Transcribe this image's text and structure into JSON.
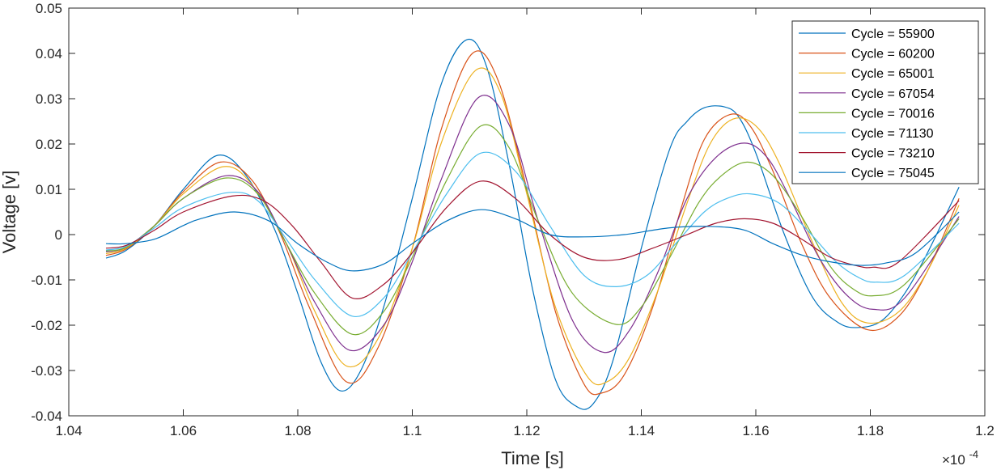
{
  "chart_data": {
    "type": "line",
    "title": "",
    "xlabel": "Time [s]",
    "ylabel": "Voltage [v]",
    "x_multiplier_label": "×10",
    "x_multiplier_exponent": "-4",
    "xlim": [
      1.04,
      1.2
    ],
    "ylim": [
      -0.04,
      0.05
    ],
    "x_ticks": [
      1.04,
      1.06,
      1.08,
      1.1,
      1.12,
      1.14,
      1.16,
      1.18,
      1.2
    ],
    "x_tick_labels": [
      "1.04",
      "1.06",
      "1.08",
      "1.1",
      "1.12",
      "1.14",
      "1.16",
      "1.18",
      "1.2"
    ],
    "y_ticks": [
      -0.04,
      -0.03,
      -0.02,
      -0.01,
      0,
      0.01,
      0.02,
      0.03,
      0.04,
      0.05
    ],
    "y_tick_labels": [
      "-0.04",
      "-0.03",
      "-0.02",
      "-0.01",
      "0",
      "0.01",
      "0.02",
      "0.03",
      "0.04",
      "0.05"
    ],
    "grid": false,
    "legend_position": "top-right",
    "series": [
      {
        "name": "Cycle = 55900",
        "color": "#0072BD",
        "x": [
          1.0465,
          1.05,
          1.055,
          1.06,
          1.066,
          1.071,
          1.076,
          1.08,
          1.084,
          1.0875,
          1.091,
          1.095,
          1.1,
          1.105,
          1.1095,
          1.113,
          1.117,
          1.121,
          1.125,
          1.1285,
          1.1315,
          1.135,
          1.14,
          1.145,
          1.148,
          1.151,
          1.1545,
          1.157,
          1.16,
          1.165,
          1.17,
          1.1745,
          1.178,
          1.182,
          1.186,
          1.19,
          1.1955
        ],
        "y": [
          -0.0052,
          -0.0035,
          0.002,
          0.01,
          0.0175,
          0.013,
          0.001,
          -0.013,
          -0.028,
          -0.0345,
          -0.03,
          -0.016,
          0.008,
          0.033,
          0.043,
          0.037,
          0.015,
          -0.012,
          -0.032,
          -0.0378,
          -0.0375,
          -0.028,
          -0.003,
          0.019,
          0.025,
          0.028,
          0.0282,
          0.026,
          0.018,
          0.0,
          -0.014,
          -0.0195,
          -0.0205,
          -0.019,
          -0.013,
          -0.004,
          0.0105
        ]
      },
      {
        "name": "Cycle = 60200",
        "color": "#D95319",
        "x": [
          1.0465,
          1.05,
          1.055,
          1.06,
          1.0665,
          1.072,
          1.077,
          1.082,
          1.0885,
          1.094,
          1.1,
          1.105,
          1.1105,
          1.115,
          1.12,
          1.125,
          1.13,
          1.133,
          1.137,
          1.142,
          1.147,
          1.151,
          1.1555,
          1.159,
          1.163,
          1.168,
          1.173,
          1.1795,
          1.185,
          1.19,
          1.1955
        ],
        "y": [
          -0.0046,
          -0.0032,
          0.002,
          0.0095,
          0.016,
          0.012,
          0.0,
          -0.016,
          -0.0325,
          -0.025,
          -0.003,
          0.023,
          0.04,
          0.034,
          0.01,
          -0.017,
          -0.033,
          -0.035,
          -0.031,
          -0.016,
          0.006,
          0.021,
          0.0265,
          0.024,
          0.014,
          -0.002,
          -0.014,
          -0.021,
          -0.018,
          -0.008,
          0.008
        ]
      },
      {
        "name": "Cycle = 65001",
        "color": "#EDB120",
        "x": [
          1.0465,
          1.05,
          1.055,
          1.06,
          1.067,
          1.072,
          1.078,
          1.083,
          1.0885,
          1.094,
          1.1,
          1.105,
          1.111,
          1.1155,
          1.12,
          1.125,
          1.1305,
          1.134,
          1.138,
          1.143,
          1.148,
          1.152,
          1.156,
          1.16,
          1.164,
          1.17,
          1.175,
          1.1795,
          1.185,
          1.19,
          1.1955
        ],
        "y": [
          -0.0042,
          -0.003,
          0.002,
          0.009,
          0.015,
          0.011,
          -0.002,
          -0.017,
          -0.029,
          -0.023,
          -0.003,
          0.02,
          0.0362,
          0.031,
          0.009,
          -0.016,
          -0.0312,
          -0.0325,
          -0.027,
          -0.012,
          0.007,
          0.02,
          0.0255,
          0.024,
          0.016,
          -0.002,
          -0.015,
          -0.0195,
          -0.017,
          -0.008,
          0.0065
        ]
      },
      {
        "name": "Cycle = 67054",
        "color": "#7E2F8E",
        "x": [
          1.0465,
          1.05,
          1.055,
          1.06,
          1.0675,
          1.073,
          1.078,
          1.083,
          1.089,
          1.095,
          1.1,
          1.105,
          1.1115,
          1.117,
          1.122,
          1.128,
          1.1335,
          1.138,
          1.143,
          1.148,
          1.153,
          1.158,
          1.162,
          1.166,
          1.171,
          1.176,
          1.1805,
          1.186,
          1.1955
        ],
        "y": [
          -0.0038,
          -0.0028,
          0.002,
          0.008,
          0.013,
          0.0095,
          -0.002,
          -0.015,
          -0.0255,
          -0.02,
          -0.006,
          0.012,
          0.0302,
          0.024,
          0.003,
          -0.019,
          -0.026,
          -0.021,
          -0.008,
          0.008,
          0.017,
          0.0202,
          0.017,
          0.008,
          -0.005,
          -0.0135,
          -0.0165,
          -0.014,
          0.004
        ]
      },
      {
        "name": "Cycle = 70016",
        "color": "#77AC30",
        "x": [
          1.0465,
          1.05,
          1.055,
          1.06,
          1.0675,
          1.073,
          1.078,
          1.083,
          1.0895,
          1.095,
          1.1,
          1.106,
          1.112,
          1.117,
          1.122,
          1.128,
          1.1355,
          1.14,
          1.145,
          1.15,
          1.154,
          1.1585,
          1.163,
          1.168,
          1.173,
          1.177,
          1.1805,
          1.186,
          1.1955
        ],
        "y": [
          -0.0036,
          -0.0028,
          0.002,
          0.008,
          0.0125,
          0.009,
          -0.002,
          -0.013,
          -0.022,
          -0.017,
          -0.005,
          0.012,
          0.024,
          0.019,
          0.003,
          -0.013,
          -0.0198,
          -0.016,
          -0.005,
          0.007,
          0.013,
          0.016,
          0.013,
          0.004,
          -0.007,
          -0.012,
          -0.0135,
          -0.011,
          0.0035
        ]
      },
      {
        "name": "Cycle = 71130",
        "color": "#4DBEEE",
        "x": [
          1.0465,
          1.05,
          1.055,
          1.06,
          1.068,
          1.073,
          1.078,
          1.083,
          1.0895,
          1.095,
          1.1,
          1.106,
          1.112,
          1.118,
          1.124,
          1.13,
          1.1355,
          1.141,
          1.146,
          1.151,
          1.155,
          1.159,
          1.164,
          1.169,
          1.174,
          1.178,
          1.181,
          1.186,
          1.1955
        ],
        "y": [
          -0.0034,
          -0.0026,
          0.0015,
          0.006,
          0.0093,
          0.0075,
          -0.001,
          -0.01,
          -0.018,
          -0.014,
          -0.004,
          0.009,
          0.018,
          0.014,
          0.002,
          -0.009,
          -0.0115,
          -0.009,
          -0.002,
          0.005,
          0.008,
          0.009,
          0.007,
          0.001,
          -0.006,
          -0.0095,
          -0.0105,
          -0.009,
          0.0025
        ]
      },
      {
        "name": "Cycle = 73210",
        "color": "#A2142F",
        "x": [
          1.0465,
          1.05,
          1.055,
          1.06,
          1.0685,
          1.074,
          1.079,
          1.084,
          1.0895,
          1.095,
          1.1,
          1.106,
          1.112,
          1.118,
          1.124,
          1.13,
          1.136,
          1.142,
          1.148,
          1.153,
          1.158,
          1.163,
          1.168,
          1.173,
          1.178,
          1.1805,
          1.185,
          1.1955
        ],
        "y": [
          -0.003,
          -0.0024,
          0.001,
          0.005,
          0.0085,
          0.0075,
          0.002,
          -0.006,
          -0.014,
          -0.011,
          -0.004,
          0.006,
          0.0118,
          0.008,
          0.0,
          -0.005,
          -0.0055,
          -0.003,
          0.0,
          0.0025,
          0.0035,
          0.0025,
          -0.001,
          -0.005,
          -0.007,
          -0.0072,
          -0.006,
          0.0075
        ]
      },
      {
        "name": "Cycle = 75045",
        "color": "#0072BD",
        "x": [
          1.0465,
          1.05,
          1.055,
          1.06,
          1.063,
          1.069,
          1.075,
          1.08,
          1.085,
          1.0895,
          1.095,
          1.1,
          1.106,
          1.112,
          1.118,
          1.124,
          1.13,
          1.137,
          1.145,
          1.152,
          1.158,
          1.163,
          1.168,
          1.173,
          1.1785,
          1.183,
          1.188,
          1.1955
        ],
        "y": [
          -0.002,
          -0.002,
          -0.001,
          0.002,
          0.0035,
          0.005,
          0.003,
          -0.002,
          -0.006,
          -0.008,
          -0.0065,
          -0.002,
          0.003,
          0.0055,
          0.0035,
          0.0,
          -0.0005,
          0.0,
          0.0015,
          0.0018,
          0.001,
          -0.002,
          -0.0045,
          -0.006,
          -0.0068,
          -0.0062,
          -0.004,
          0.005
        ]
      }
    ]
  }
}
